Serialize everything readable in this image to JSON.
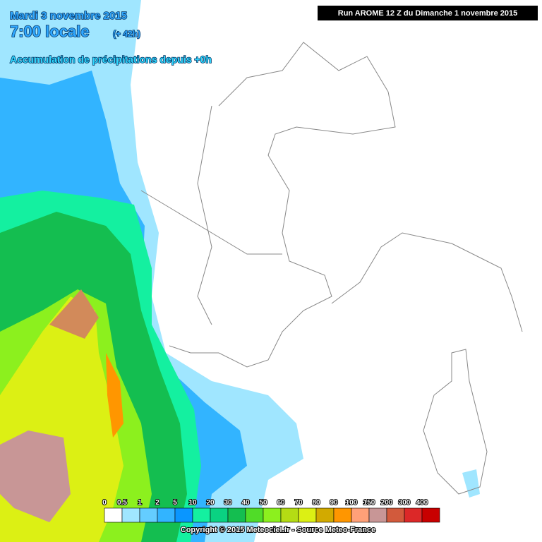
{
  "header": {
    "date": "Mardi 3 novembre 2015",
    "time": "7:00 locale",
    "offset": "(+ 42h)",
    "subtitle": "Accumulation de précipitations depuis +0h"
  },
  "run_label": "Run AROME 12 Z du Dimanche 1 novembre 2015",
  "legend": {
    "items": [
      {
        "label": "0",
        "color": "#ffffff"
      },
      {
        "label": "0.5",
        "color": "#a0e6ff"
      },
      {
        "label": "1",
        "color": "#64cdff"
      },
      {
        "label": "2",
        "color": "#32b4ff"
      },
      {
        "label": "5",
        "color": "#0a96ff"
      },
      {
        "label": "10",
        "color": "#14f0a0"
      },
      {
        "label": "20",
        "color": "#0ad282"
      },
      {
        "label": "30",
        "color": "#14be50"
      },
      {
        "label": "40",
        "color": "#50dc28"
      },
      {
        "label": "50",
        "color": "#8cf01e"
      },
      {
        "label": "60",
        "color": "#b4dc14"
      },
      {
        "label": "70",
        "color": "#dcf014"
      },
      {
        "label": "80",
        "color": "#d2aa00"
      },
      {
        "label": "90",
        "color": "#ff9600"
      },
      {
        "label": "100",
        "color": "#ffa078"
      },
      {
        "label": "150",
        "color": "#c89696"
      },
      {
        "label": "200",
        "color": "#d25a3c"
      },
      {
        "label": "300",
        "color": "#dc2828"
      },
      {
        "label": "400",
        "color": "#c80000"
      }
    ]
  },
  "copyright": "Copyright © 2015 Meteociel.fr - Source Meteo-France"
}
